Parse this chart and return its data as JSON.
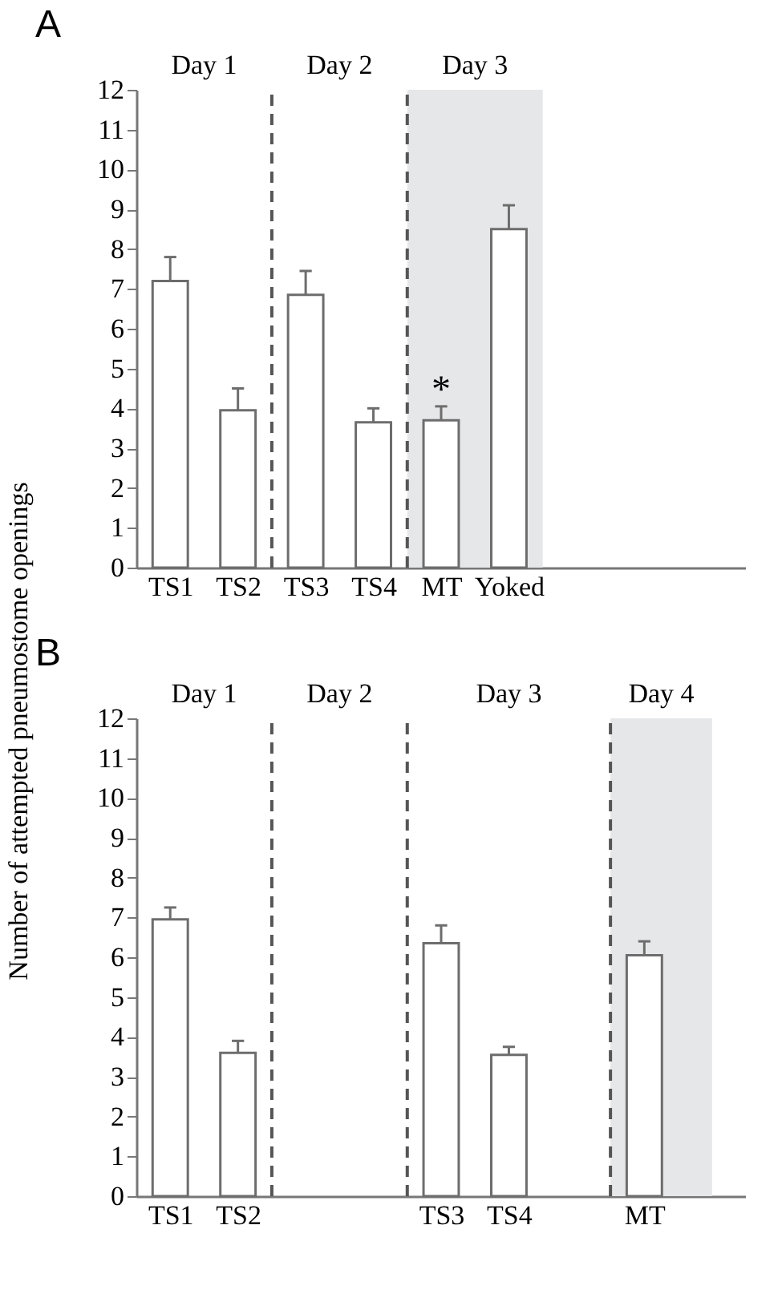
{
  "chart_data": [
    {
      "type": "bar",
      "title": "A",
      "ylabel": "Number of attempted pneumostome openings",
      "categories": [
        "TS1",
        "TS2",
        "TS3",
        "TS4",
        "MT",
        "Yoked",
        null,
        null,
        null
      ],
      "series": [
        {
          "color": "#ffffff",
          "values": [
            7.2,
            3.95,
            6.85,
            3.65,
            3.7,
            8.5,
            null,
            null,
            null
          ],
          "errors": [
            [
              7.2,
              7.8
            ],
            [
              3.95,
              4.5
            ],
            [
              6.85,
              7.45
            ],
            [
              3.65,
              4.0
            ],
            [
              3.7,
              4.05
            ],
            [
              8.5,
              9.1
            ],
            null,
            null,
            null
          ],
          "value_labels": [
            null,
            null,
            null,
            null,
            "*",
            null,
            null,
            null,
            null
          ]
        }
      ],
      "ylim": [
        0,
        12
      ],
      "yticks": [
        0,
        1,
        2,
        3,
        4,
        5,
        6,
        7,
        8,
        9,
        10,
        11,
        12
      ],
      "grid": false,
      "annotations": [
        "Day 1",
        "Day 2",
        "Day 3"
      ]
    },
    {
      "type": "bar",
      "title": "B",
      "categories": [
        "TS1",
        "TS2",
        null,
        null,
        "TS3",
        "TS4",
        null,
        "MT",
        null
      ],
      "series": [
        {
          "color": "#ffffff",
          "values": [
            6.95,
            3.6,
            null,
            null,
            6.35,
            3.55,
            null,
            6.05,
            null
          ],
          "errors": [
            [
              6.95,
              7.25
            ],
            [
              3.6,
              3.9
            ],
            null,
            null,
            [
              6.35,
              6.8
            ],
            [
              3.55,
              3.75
            ],
            null,
            [
              6.05,
              6.4
            ],
            null
          ]
        }
      ],
      "ylim": [
        0,
        12
      ],
      "yticks": [
        0,
        1,
        2,
        3,
        4,
        5,
        6,
        7,
        8,
        9,
        10,
        11,
        12
      ],
      "grid": false,
      "annotations": [
        "Day 1",
        "Day 2",
        "Day 3",
        "Day 4"
      ]
    }
  ]
}
